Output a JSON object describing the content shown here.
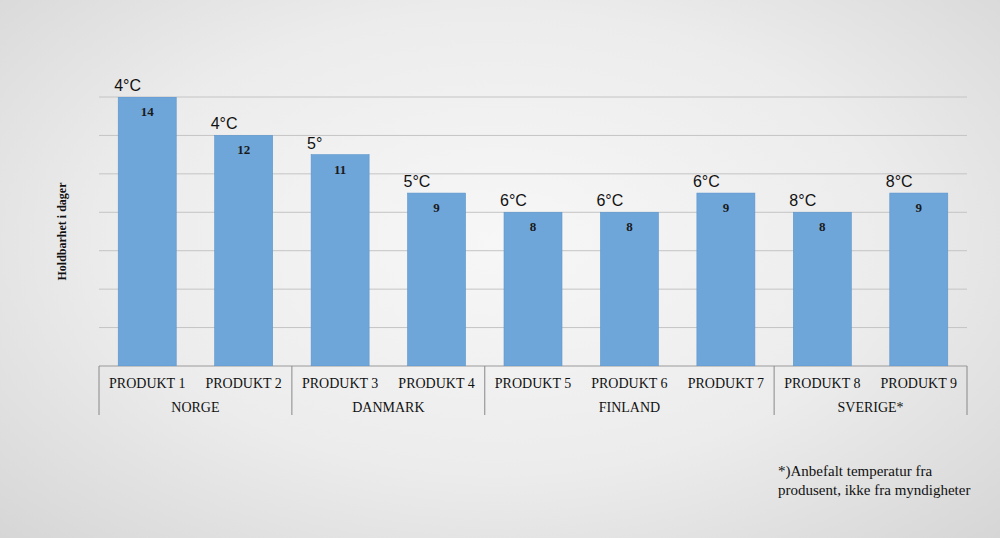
{
  "chart_data": {
    "type": "bar",
    "y_label": "Holdbarhet i dager",
    "categories": [
      "PRODUKT 1",
      "PRODUKT 2",
      "PRODUKT 3",
      "PRODUKT 4",
      "PRODUKT 5",
      "PRODUKT 6",
      "PRODUKT 7",
      "PRODUKT 8",
      "PRODUKT 9"
    ],
    "values": [
      14,
      12,
      11,
      9,
      8,
      8,
      9,
      8,
      9
    ],
    "annotations": [
      "4°C",
      "4°C",
      "5°",
      "5°C",
      "6°C",
      "6°C",
      "6°C",
      "8°C",
      "8°C"
    ],
    "groups": [
      {
        "name": "NORGE",
        "size": 2
      },
      {
        "name": "DANMARK",
        "size": 2
      },
      {
        "name": "FINLAND",
        "size": 3
      },
      {
        "name": "SVERIGE*",
        "size": 2
      }
    ],
    "note": "*)Anbefalt temperatur fra produsent, ikke fra myndigheter",
    "color": "#6fa6d9",
    "ylim": [
      0,
      14
    ],
    "yticks": [
      0,
      2,
      4,
      6,
      8,
      10,
      12,
      14
    ],
    "grid": true,
    "data_labels": true,
    "tick_labels": "x"
  }
}
